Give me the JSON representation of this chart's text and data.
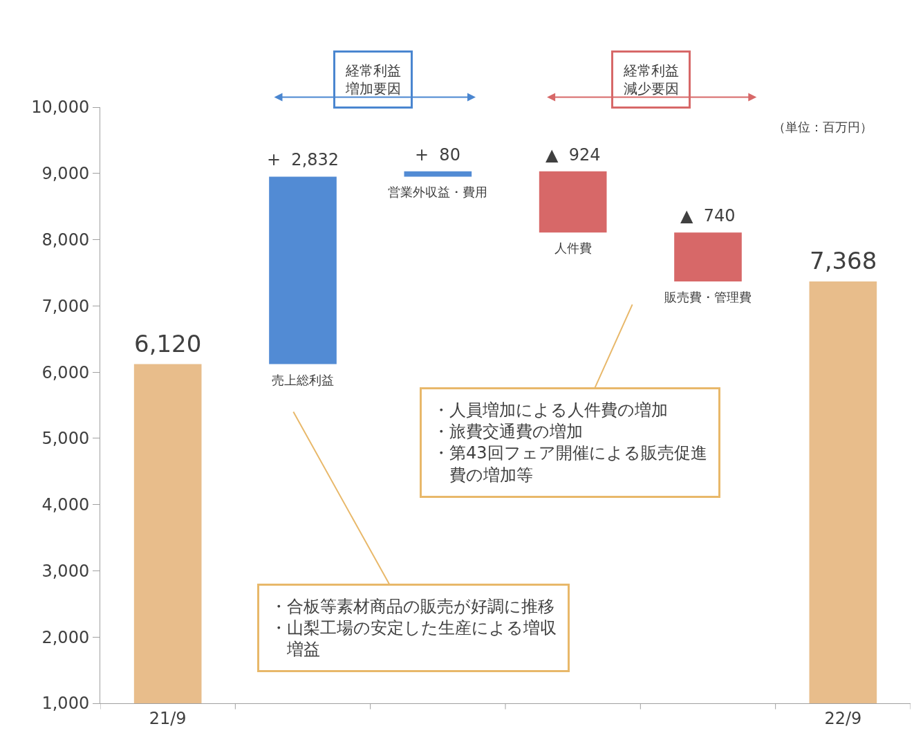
{
  "chart_data": {
    "type": "bar",
    "categories": [
      "21/9",
      "売上総利益",
      "営業外収益・費用",
      "人件費",
      "販売費・管理費",
      "22/9"
    ],
    "values": [
      6120,
      2832,
      80,
      -924,
      -740,
      7368
    ],
    "base": [
      0,
      6120,
      8952,
      9032,
      8108,
      0
    ],
    "colors": [
      "#e8bd8b",
      "#528bd4",
      "#528bd4",
      "#d76868",
      "#d76868",
      "#e8bd8b"
    ],
    "value_labels": [
      "6,120",
      "+  2,832",
      "+  80",
      "▲  924",
      "▲  740",
      "7,368"
    ],
    "ylim": [
      1000,
      10000
    ],
    "yticks": [
      {
        "value": 1000,
        "label": "1,000"
      },
      {
        "value": 2000,
        "label": "2,000"
      },
      {
        "value": 3000,
        "label": "3,000"
      },
      {
        "value": 4000,
        "label": "4,000"
      },
      {
        "value": 5000,
        "label": "5,000"
      },
      {
        "value": 6000,
        "label": "6,000"
      },
      {
        "value": 7000,
        "label": "7,000"
      },
      {
        "value": 8000,
        "label": "8,000"
      },
      {
        "value": 9000,
        "label": "9,000"
      },
      {
        "value": 10000,
        "label": "10,000"
      }
    ],
    "annotations": [
      "経常利益増加要因",
      "経常利益減少要因",
      "（単位：百万円）",
      "・合板等素材商品の販売が好調に推移・山梨工場の安定した生産による増収増益",
      "・人員増加による人件費の増加・旅費交通費の増加・第43回フェア開催による販売促進費の増加等"
    ]
  }
}
